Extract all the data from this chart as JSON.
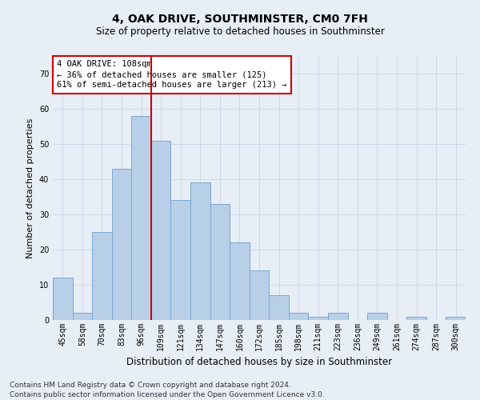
{
  "title": "4, OAK DRIVE, SOUTHMINSTER, CM0 7FH",
  "subtitle": "Size of property relative to detached houses in Southminster",
  "xlabel": "Distribution of detached houses by size in Southminster",
  "ylabel": "Number of detached properties",
  "footer_line1": "Contains HM Land Registry data © Crown copyright and database right 2024.",
  "footer_line2": "Contains public sector information licensed under the Open Government Licence v3.0.",
  "annotation_line1": "4 OAK DRIVE: 108sqm",
  "annotation_line2": "← 36% of detached houses are smaller (125)",
  "annotation_line3": "61% of semi-detached houses are larger (213) →",
  "categories": [
    "45sqm",
    "58sqm",
    "70sqm",
    "83sqm",
    "96sqm",
    "109sqm",
    "121sqm",
    "134sqm",
    "147sqm",
    "160sqm",
    "172sqm",
    "185sqm",
    "198sqm",
    "211sqm",
    "223sqm",
    "236sqm",
    "249sqm",
    "261sqm",
    "274sqm",
    "287sqm",
    "300sqm"
  ],
  "values": [
    12,
    2,
    25,
    43,
    58,
    51,
    34,
    39,
    33,
    22,
    14,
    7,
    2,
    1,
    2,
    0,
    2,
    0,
    1,
    0,
    1
  ],
  "bar_color": "#b8cfe8",
  "bar_edge_color": "#7aa8d4",
  "red_line_color": "#cc0000",
  "red_line_index": 5,
  "ylim": [
    0,
    75
  ],
  "yticks": [
    0,
    10,
    20,
    30,
    40,
    50,
    60,
    70
  ],
  "grid_color": "#c8d4e4",
  "bg_color": "#e8eef6",
  "annotation_box_facecolor": "#ffffff",
  "annotation_box_edgecolor": "#cc0000",
  "title_fontsize": 10,
  "subtitle_fontsize": 8.5,
  "tick_fontsize": 7,
  "ylabel_fontsize": 8,
  "xlabel_fontsize": 8.5,
  "footer_fontsize": 6.5,
  "annotation_fontsize": 7.5
}
